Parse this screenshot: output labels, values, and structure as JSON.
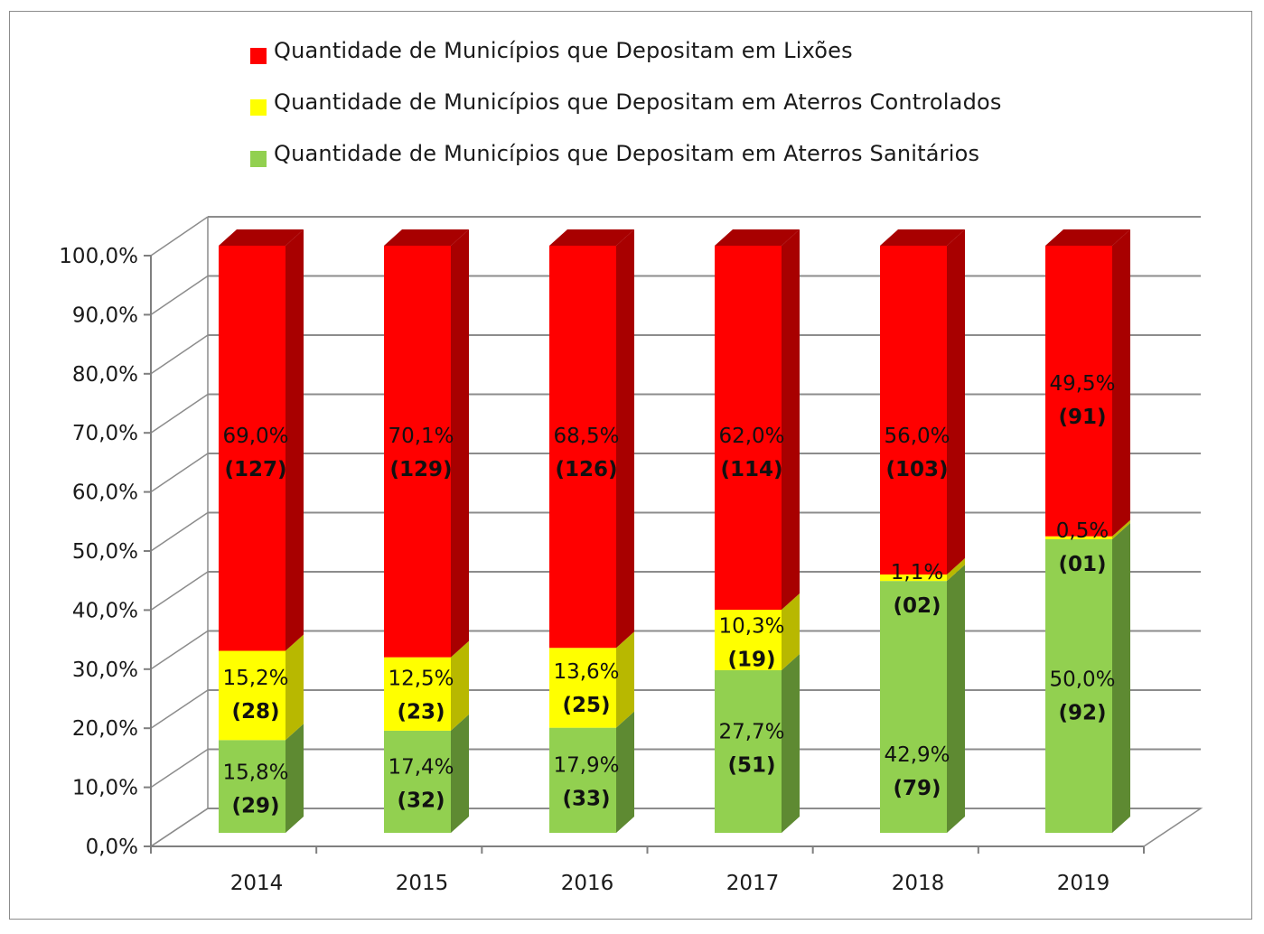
{
  "chart_data": {
    "type": "bar",
    "stacked": true,
    "three_d": true,
    "categories": [
      "2014",
      "2015",
      "2016",
      "2017",
      "2018",
      "2019"
    ],
    "ylim": [
      0,
      100
    ],
    "yticks": [
      "0,0%",
      "10,0%",
      "20,0%",
      "30,0%",
      "40,0%",
      "50,0%",
      "60,0%",
      "70,0%",
      "80,0%",
      "90,0%",
      "100,0%"
    ],
    "grid": true,
    "legend_position": "top",
    "series": [
      {
        "name": "Quantidade de Municípios que Depositam em Aterros Sanitários",
        "color": "#92d050",
        "side_color": "#5e8a32",
        "values": [
          15.8,
          17.4,
          17.9,
          27.7,
          42.9,
          50.0
        ],
        "pct_labels": [
          "15,8%",
          "17,4%",
          "17,9%",
          "27,7%",
          "42,9%",
          "50,0%"
        ],
        "count_labels": [
          "(29)",
          "(32)",
          "(33)",
          "(51)",
          "(79)",
          "(92)"
        ]
      },
      {
        "name": "Quantidade de Municípios que Depositam em Aterros Controlados",
        "color": "#ffff00",
        "side_color": "#b8b800",
        "values": [
          15.2,
          12.5,
          13.6,
          10.3,
          1.1,
          0.5
        ],
        "pct_labels": [
          "15,2%",
          "12,5%",
          "13,6%",
          "10,3%",
          "1,1%",
          "0,5%"
        ],
        "count_labels": [
          "(28)",
          "(23)",
          "(25)",
          "(19)",
          "(02)",
          "(01)"
        ]
      },
      {
        "name": "Quantidade de Municípios que Depositam em Lixões",
        "color": "#ff0000",
        "side_color": "#a80000",
        "values": [
          69.0,
          70.1,
          68.5,
          62.0,
          56.0,
          49.5
        ],
        "pct_labels": [
          "69,0%",
          "70,1%",
          "68,5%",
          "62,0%",
          "56,0%",
          "49,5%"
        ],
        "count_labels": [
          "(127)",
          "(129)",
          "(126)",
          "(114)",
          "(103)",
          "(91)"
        ]
      }
    ]
  },
  "legend": [
    {
      "label": "Quantidade de Municípios que Depositam em Lixões",
      "color": "#ff0000"
    },
    {
      "label": "Quantidade de Municípios que Depositam em Aterros Controlados",
      "color": "#ffff00"
    },
    {
      "label": "Quantidade de Municípios que Depositam em Aterros Sanitários",
      "color": "#92d050"
    }
  ]
}
